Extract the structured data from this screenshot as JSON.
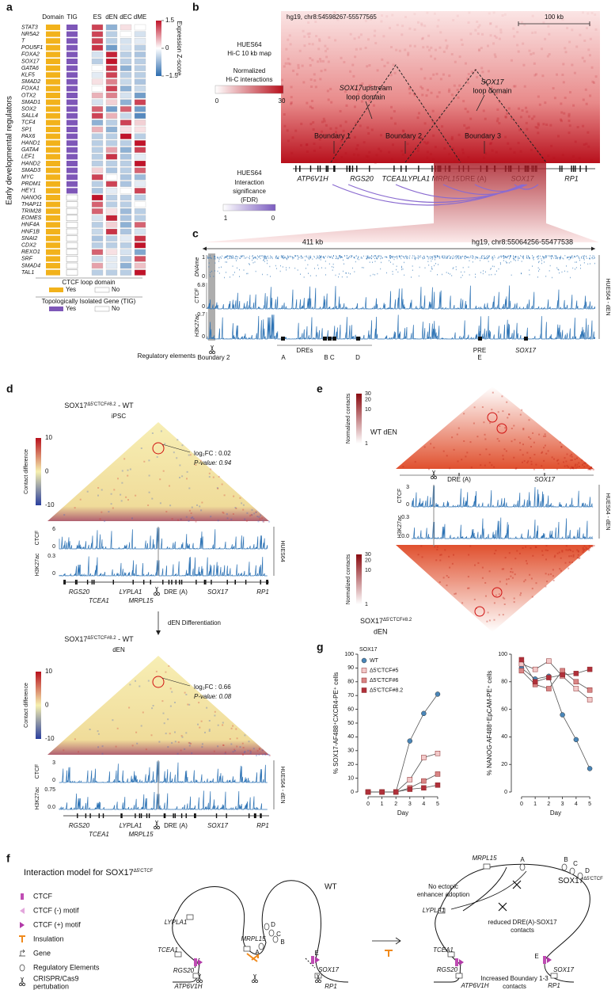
{
  "panel_labels": {
    "a": "a",
    "b": "b",
    "c": "c",
    "d": "d",
    "e": "e",
    "f": "f",
    "g": "g"
  },
  "panel_a": {
    "y_label": "Early developmental regulators",
    "columns": [
      "Domain",
      "TIG",
      "ES",
      "dEN",
      "dEC",
      "dME"
    ],
    "genes": [
      "STAT3",
      "NR5A2",
      "T",
      "POU5F1",
      "FOXA2",
      "SOX17",
      "GATA6",
      "KLF5",
      "SMAD2",
      "FOXA1",
      "OTX2",
      "SMAD1",
      "SOX2",
      "SALL4",
      "TCF4",
      "SP1",
      "PAX6",
      "HAND1",
      "GATA4",
      "LEF1",
      "HAND2",
      "SMAD3",
      "MYC",
      "PRDM1",
      "HEY1",
      "NANOG",
      "THAP11",
      "TRIM28",
      "EOMES",
      "HNF4A",
      "HNF1B",
      "SNAI2",
      "CDX2",
      "REXO1",
      "SRF",
      "SMAD4",
      "TAL1"
    ],
    "domain": [
      true,
      true,
      true,
      true,
      true,
      true,
      true,
      true,
      true,
      true,
      true,
      true,
      true,
      true,
      true,
      true,
      true,
      true,
      true,
      true,
      true,
      true,
      true,
      true,
      true,
      true,
      true,
      true,
      true,
      true,
      true,
      true,
      true,
      true,
      true,
      true,
      true
    ],
    "tig": [
      true,
      true,
      true,
      true,
      true,
      true,
      true,
      true,
      true,
      true,
      true,
      true,
      true,
      true,
      true,
      true,
      true,
      true,
      true,
      true,
      true,
      true,
      true,
      true,
      true,
      false,
      false,
      false,
      false,
      false,
      false,
      false,
      false,
      false,
      false,
      false,
      false
    ],
    "expression": [
      [
        1.2,
        -0.8,
        0.2,
        0
      ],
      [
        1.2,
        -0.5,
        0,
        -0.3
      ],
      [
        1.2,
        -0.5,
        -0.3,
        -0.2
      ],
      [
        1.3,
        -1,
        -0.3,
        -0.5
      ],
      [
        -0.3,
        1.4,
        -0.5,
        -0.6
      ],
      [
        -0.5,
        1.5,
        -0.5,
        -0.5
      ],
      [
        0,
        1.3,
        -0.8,
        -0.5
      ],
      [
        -0.2,
        1.2,
        -0.5,
        -0.5
      ],
      [
        0.2,
        0.8,
        -0.4,
        -0.6
      ],
      [
        0,
        1.2,
        -0.8,
        -0.4
      ],
      [
        0.5,
        0.8,
        -0.3,
        -1
      ],
      [
        -0.3,
        0.3,
        -0.8,
        1.2
      ],
      [
        1,
        -1,
        1,
        -1
      ],
      [
        1.2,
        0.5,
        -0.4,
        -1.2
      ],
      [
        -0.8,
        -0.5,
        1.2,
        0.3
      ],
      [
        0.5,
        -0.8,
        0.2,
        0.2
      ],
      [
        -0.5,
        -0.5,
        1.5,
        -0.5
      ],
      [
        -0.5,
        -0.5,
        -0.5,
        1.5
      ],
      [
        -0.5,
        0.6,
        -0.8,
        1.2
      ],
      [
        -0.5,
        1.3,
        -0.6,
        -0.2
      ],
      [
        -0.5,
        -0.5,
        -0.5,
        1.5
      ],
      [
        0.3,
        -0.6,
        -0.5,
        1
      ],
      [
        1.2,
        0,
        -0.6,
        -0.7
      ],
      [
        -0.5,
        1.2,
        -0.6,
        -0.2
      ],
      [
        -0.6,
        -0.2,
        0,
        1.2
      ],
      [
        1.5,
        -0.5,
        -0.5,
        -0.5
      ],
      [
        1,
        -0.5,
        -0.5,
        0
      ],
      [
        1,
        0.2,
        -0.7,
        -0.5
      ],
      [
        -0.3,
        1.4,
        -0.6,
        -0.5
      ],
      [
        -0.5,
        0.3,
        -0.8,
        1
      ],
      [
        -0.4,
        1.3,
        -0.6,
        -0.3
      ],
      [
        -0.6,
        -0.5,
        -0.2,
        1.3
      ],
      [
        -0.5,
        -0.5,
        -0.5,
        1.5
      ],
      [
        1,
        0.2,
        -0.3,
        -0.9
      ],
      [
        -0.4,
        -0.2,
        -0.5,
        1.1
      ],
      [
        0.6,
        -0.2,
        -0.8,
        0.4
      ],
      [
        -0.5,
        -0.5,
        -0.5,
        1.5
      ]
    ],
    "colorbar_title": "Expression Z-score",
    "colorbar_ticks": [
      1.5,
      0,
      {
        "value": -1.5,
        "label": "−1.5"
      }
    ],
    "legend_domain_title": "CTCF loop domain",
    "legend_yes": "Yes",
    "legend_no": "No",
    "legend_tig_title": "Topologically Isolated Gene (TIG)",
    "legend_tig_yes": "Yes",
    "legend_tig_no": "No"
  },
  "panel_b": {
    "coords": "hg19, chr8:54598267-55577565",
    "scale": "100 kb",
    "map_title": [
      "HUES64",
      "Hi-C 10 kb map"
    ],
    "colorbar_title": [
      "Normalized",
      "Hi-C interactions"
    ],
    "colorbar_ticks": [
      0,
      30
    ],
    "upstream_domain": [
      "SOX17",
      "upstream",
      "loop domain"
    ],
    "sox17_domain": [
      "SOX17",
      "loop domain"
    ],
    "boundaries": [
      "Boundary 1",
      "Boundary 2",
      "Boundary 3"
    ],
    "genes": [
      "ATP6V1H",
      "RGS20",
      "TCEA1",
      "LYPLA1",
      "MRPL15",
      "DRE (A)",
      "SOX17",
      "RP1"
    ],
    "fdr_title": [
      "HUES64",
      "Interaction",
      "significance",
      "(FDR)"
    ],
    "fdr_ticks": [
      1,
      0
    ]
  },
  "panel_c": {
    "span": "411 kb",
    "coords": "hg19, chr8:55064256-55477538",
    "tracks": [
      {
        "name": "DNAme",
        "max": 1,
        "min": 0
      },
      {
        "name": "CTCF",
        "max": 6.8,
        "min": 0
      },
      {
        "name": "H3K27ac",
        "max": 0.7,
        "min": 0
      }
    ],
    "sample": "HUES64 - dEN",
    "reg_title": "Regulatory elements",
    "boundary": "Boundary 2",
    "dres": "DREs",
    "labels": [
      "A",
      "B C",
      "D"
    ],
    "pre": "PRE",
    "e": "E",
    "sox17": "SOX17"
  },
  "panel_d": {
    "top": {
      "gene": "SOX17",
      "sup": "Δ5'CTCF#8.2",
      "rest": " - WT",
      "cell": "iPSC",
      "logfc": "log₂FC : 0.02",
      "pvalue": "P-value: 0.94",
      "colorbar_title": "Contact difference",
      "colorbar_ticks": [
        10,
        0,
        -10
      ],
      "tracks": [
        {
          "name": "CTCF",
          "max": 6,
          "min": 0
        },
        {
          "name": "H3K27ac",
          "max": 0.3,
          "min": 0
        }
      ],
      "sample": "HUES64",
      "genes": [
        "RGS20",
        "TCEA1",
        "LYPLA1",
        "MRPL15",
        "DRE (A)",
        "SOX17",
        "RP1"
      ]
    },
    "arrow": "dEN Differentiation",
    "bottom": {
      "gene": "SOX17",
      "sup": "Δ5'CTCF#8.2",
      "rest": " - WT",
      "cell": "dEN",
      "logfc": "log₂FC : 0.66",
      "pvalue": "P-value: 0.08",
      "colorbar_title": "Contact difference",
      "colorbar_ticks": [
        10,
        0,
        -10
      ],
      "tracks": [
        {
          "name": "CTCF",
          "max": 3,
          "min": 0
        },
        {
          "name": "H3K27ac",
          "max": 0.75,
          "min": {
            "value": 0,
            "label": "0.0"
          }
        }
      ],
      "sample": "HUES64 - dEN",
      "genes": [
        "RGS20",
        "TCEA1",
        "LYPLA1",
        "MRPL15",
        "DRE (A)",
        "SOX17",
        "RP1"
      ]
    }
  },
  "panel_e": {
    "top": {
      "colorbar_title": "Normalized contacts",
      "colorbar_ticks": [
        30,
        20,
        10,
        1
      ],
      "label": "WT dEN"
    },
    "genes": [
      "DRE (A)",
      "SOX17"
    ],
    "tracks": [
      {
        "name": "CTCF",
        "max": 3,
        "min": 0
      },
      {
        "name": "H3K27ac",
        "max": 0.3,
        "min": {
          "value": 0,
          "label": "0.0"
        }
      }
    ],
    "sample": "HUES64 - dEN",
    "bottom": {
      "colorbar_title": "Normalized contacts",
      "colorbar_ticks": [
        30,
        20,
        10,
        1
      ],
      "gene": "SOX17",
      "sup": "Δ5'CTCF#8.2",
      "cell": "dEN"
    }
  },
  "panel_f": {
    "title": {
      "text": "Interaction model for SOX17",
      "sup": "Δ5'CTCF"
    },
    "legend": [
      "CTCF",
      "CTCF (-) motif",
      "CTCF (+) motif",
      "Insulation",
      "Gene",
      "Regulatory Elements"
    ],
    "legend_crispr": [
      "CRISPR/Cas9",
      "pertubation"
    ],
    "wt": "WT",
    "mutant": {
      "gene": "SOX17",
      "sup": "Δ5'CTCF"
    },
    "wt_labels": [
      "LYPLA1",
      "TCEA1",
      "MRPL15",
      "RGS20",
      "ATP6V1H",
      "SOX17",
      "RP1",
      "A",
      "B",
      "C",
      "D",
      "E"
    ],
    "mut_labels": [
      "MRPL15",
      "LYPLA1",
      "TCEA1",
      "RGS20",
      "ATP6V1H",
      "SOX17",
      "RP1",
      "A",
      "B",
      "C",
      "D",
      "E"
    ],
    "notes": [
      "No ectopic",
      "enhancer adoption",
      "reduced DRE(A)-SOX17",
      "contacts",
      "Increased Boundary 1-3",
      "contacts"
    ]
  },
  "chart_data": [
    {
      "type": "line",
      "legend_title": "SOX17",
      "y_label": "% SOX17-AF488⁺CXCR4-PE⁺ cells",
      "x_label": "Day",
      "x": [
        0,
        1,
        2,
        3,
        4,
        5
      ],
      "xlim": [
        -0.4,
        5.4
      ],
      "xticks": [
        0,
        1,
        2,
        3,
        4,
        5
      ],
      "ylim": [
        0,
        100
      ],
      "yticks": [
        0,
        10,
        20,
        30,
        40,
        50,
        60,
        70,
        80,
        90,
        100
      ],
      "series": [
        {
          "name": "WT",
          "color": "#4a86b8",
          "marker": "circle",
          "values": [
            0,
            0,
            0,
            37,
            57,
            71
          ]
        },
        {
          "name": "Δ5'CTCF#5",
          "color": "#f2c9c9",
          "marker": "square",
          "values": [
            0,
            0,
            0,
            9,
            25,
            28
          ]
        },
        {
          "name": "Δ5'CTCF#6",
          "color": "#d98585",
          "marker": "square",
          "values": [
            0,
            0,
            0,
            3,
            8,
            13
          ]
        },
        {
          "name": "Δ5'CTCF#8.2",
          "color": "#b0303a",
          "marker": "square",
          "values": [
            0,
            0,
            0,
            2,
            3,
            5
          ]
        }
      ]
    },
    {
      "type": "line",
      "y_label": "% NANOG-AF488⁺EpCAM-PE⁺ cells",
      "x_label": "Day",
      "x": [
        0,
        1,
        2,
        3,
        4,
        5
      ],
      "xlim": [
        -0.4,
        5.4
      ],
      "xticks": [
        0,
        1,
        2,
        3,
        4,
        5
      ],
      "ylim": [
        0,
        100
      ],
      "yticks": [
        0,
        20,
        40,
        60,
        80,
        100
      ],
      "series": [
        {
          "color": "#4a86b8",
          "marker": "circle",
          "values": [
            90,
            82,
            84,
            56,
            38,
            17
          ]
        },
        {
          "color": "#f2c9c9",
          "marker": "square",
          "values": [
            93,
            89,
            95,
            84,
            75,
            67
          ]
        },
        {
          "color": "#d98585",
          "marker": "square",
          "values": [
            88,
            78,
            75,
            88,
            80,
            74
          ]
        },
        {
          "color": "#b0303a",
          "marker": "square",
          "values": [
            96,
            80,
            83,
            85,
            86,
            89
          ]
        }
      ]
    }
  ]
}
